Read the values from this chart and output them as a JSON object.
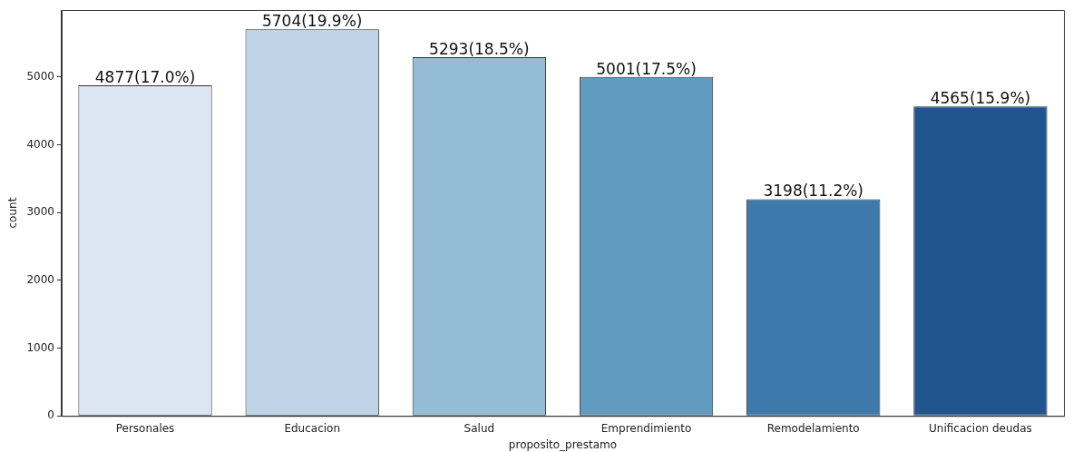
{
  "chart_data": {
    "type": "bar",
    "xlabel": "proposito_prestamo",
    "ylabel": "count",
    "categories": [
      "Personales",
      "Educacion",
      "Salud",
      "Emprendimiento",
      "Remodelamiento",
      "Unificacion deudas"
    ],
    "values": [
      4877,
      5704,
      5293,
      5001,
      3198,
      4565
    ],
    "colors": [
      "#dce6f2",
      "#bed4e6",
      "#94bcd5",
      "#629bc0",
      "#3d79ab",
      "#215590"
    ],
    "value_labels": [
      "4877(17.0%)",
      "5704(19.9%)",
      "5293(18.5%)",
      "5001(17.5%)",
      "3198(11.2%)",
      "4565(15.9%)"
    ],
    "ylim": [
      0,
      5989
    ],
    "yticks": [
      0,
      1000,
      2000,
      3000,
      4000,
      5000
    ],
    "grid": false,
    "legend": false
  }
}
